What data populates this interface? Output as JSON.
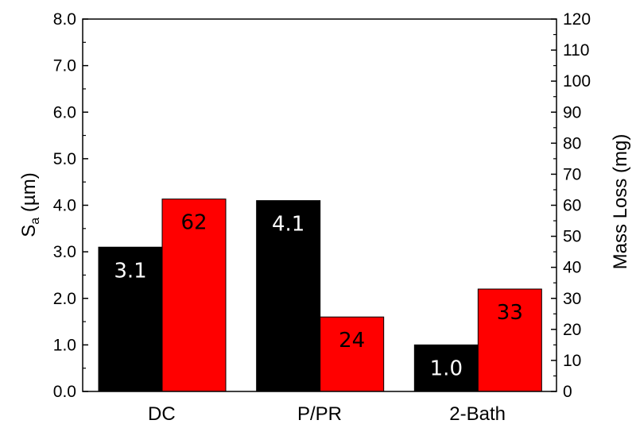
{
  "chart_data": {
    "type": "bar",
    "categories": [
      "DC",
      "P/PR",
      "2-Bath"
    ],
    "series": [
      {
        "axis": "left",
        "color": "#000000",
        "label_color": "#ffffff",
        "values": [
          3.1,
          4.1,
          1.0
        ],
        "data_labels": [
          "3.1",
          "4.1",
          "1.0"
        ]
      },
      {
        "axis": "right",
        "color": "#ff0000",
        "label_color": "#000000",
        "values": [
          62,
          24,
          33
        ],
        "data_labels": [
          "62",
          "24",
          "33"
        ]
      }
    ],
    "y_left": {
      "title_main": "S",
      "title_sub": "a",
      "title_rest": " (µm)",
      "range": [
        0,
        8
      ],
      "ticks": [
        "0.0",
        "1.0",
        "2.0",
        "3.0",
        "4.0",
        "5.0",
        "6.0",
        "7.0",
        "8.0"
      ]
    },
    "y_right": {
      "title": "Mass Loss (mg)",
      "range": [
        0,
        120
      ],
      "ticks": [
        "0",
        "10",
        "20",
        "30",
        "40",
        "50",
        "60",
        "70",
        "80",
        "90",
        "100",
        "110",
        "120"
      ]
    },
    "grid": false,
    "legend": "none"
  }
}
